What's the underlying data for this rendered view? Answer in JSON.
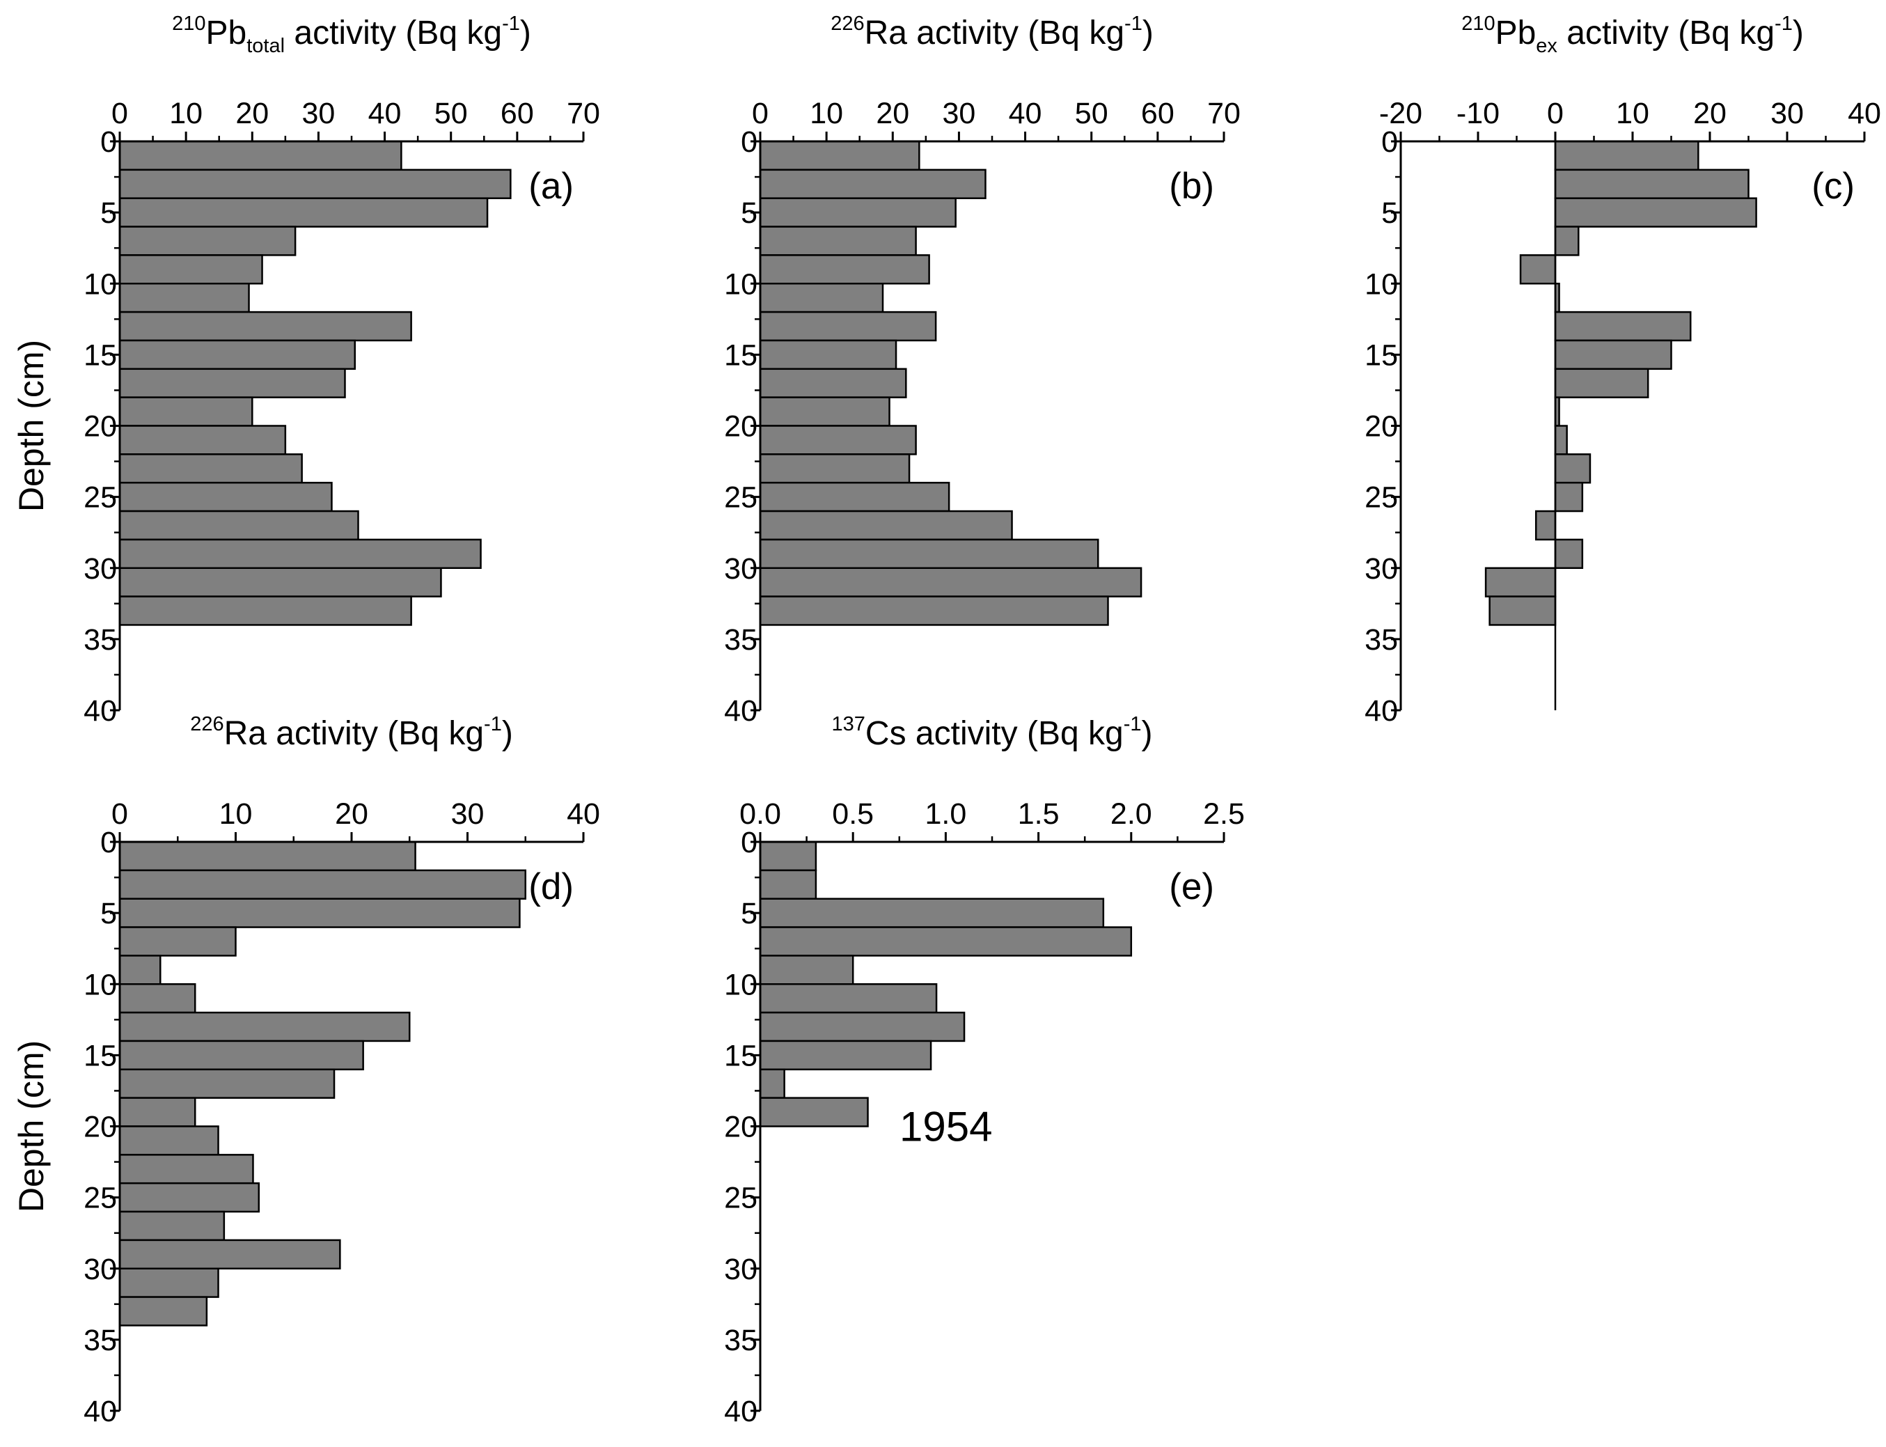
{
  "chart_data": [
    {
      "type": "bar",
      "orientation": "horizontal",
      "panel": "(a)",
      "title": {
        "sup": "210",
        "main": "Pb",
        "sub": "total",
        "rest": " activity (Bq kg",
        "unit_sup": "-1",
        "close": ")"
      },
      "ylabel": "Depth (cm)",
      "xlim": [
        0,
        70
      ],
      "xticks": [
        0,
        10,
        20,
        30,
        40,
        50,
        60,
        70
      ],
      "ylim": [
        0,
        40
      ],
      "yticks": [
        0,
        5,
        10,
        15,
        20,
        25,
        30,
        35,
        40
      ],
      "bin_width_cm": 2,
      "depth_top": [
        0,
        2,
        4,
        6,
        8,
        10,
        12,
        14,
        16,
        18,
        20,
        22,
        24,
        26,
        28,
        30,
        32
      ],
      "values": [
        42.5,
        59,
        55.5,
        26.5,
        21.5,
        19.5,
        44,
        35.5,
        34,
        20,
        25,
        27.5,
        32,
        36,
        54.5,
        48.5,
        44
      ]
    },
    {
      "type": "bar",
      "orientation": "horizontal",
      "panel": "(b)",
      "title": {
        "sup": "226",
        "main": "Ra",
        "sub": "",
        "rest": " activity (Bq kg",
        "unit_sup": "-1",
        "close": ")"
      },
      "ylabel": "",
      "xlim": [
        0,
        70
      ],
      "xticks": [
        0,
        10,
        20,
        30,
        40,
        50,
        60,
        70
      ],
      "ylim": [
        0,
        40
      ],
      "yticks": [
        0,
        5,
        10,
        15,
        20,
        25,
        30,
        35,
        40
      ],
      "bin_width_cm": 2,
      "depth_top": [
        0,
        2,
        4,
        6,
        8,
        10,
        12,
        14,
        16,
        18,
        20,
        22,
        24,
        26,
        28,
        30,
        32
      ],
      "values": [
        24,
        34,
        29.5,
        23.5,
        25.5,
        18.5,
        26.5,
        20.5,
        22,
        19.5,
        23.5,
        22.5,
        28.5,
        38,
        51,
        57.5,
        52.5
      ]
    },
    {
      "type": "bar",
      "orientation": "horizontal",
      "panel": "(c)",
      "title": {
        "sup": "210",
        "main": "Pb",
        "sub": "ex",
        "rest": " activity (Bq kg",
        "unit_sup": "-1",
        "close": ")"
      },
      "ylabel": "",
      "xlim": [
        -20,
        40
      ],
      "xticks": [
        -20,
        -10,
        0,
        10,
        20,
        30,
        40
      ],
      "ylim": [
        0,
        40
      ],
      "yticks": [
        0,
        5,
        10,
        15,
        20,
        25,
        30,
        35,
        40
      ],
      "bin_width_cm": 2,
      "depth_top": [
        0,
        2,
        4,
        6,
        8,
        10,
        12,
        14,
        16,
        18,
        20,
        22,
        24,
        26,
        28,
        30,
        32
      ],
      "values": [
        18.5,
        25,
        26,
        3,
        -4.5,
        0.5,
        17.5,
        15,
        12,
        0.5,
        1.5,
        4.5,
        3.5,
        -2.5,
        3.5,
        -9,
        -8.5
      ]
    },
    {
      "type": "bar",
      "orientation": "horizontal",
      "panel": "(d)",
      "title": {
        "sup": "226",
        "main": "Ra",
        "sub": "",
        "rest": " activity (Bq kg",
        "unit_sup": "-1",
        "close": ")"
      },
      "ylabel": "Depth (cm)",
      "xlim": [
        0,
        40
      ],
      "xticks": [
        0,
        10,
        20,
        30,
        40
      ],
      "ylim": [
        0,
        40
      ],
      "yticks": [
        0,
        5,
        10,
        15,
        20,
        25,
        30,
        35,
        40
      ],
      "bin_width_cm": 2,
      "depth_top": [
        0,
        2,
        4,
        6,
        8,
        10,
        12,
        14,
        16,
        18,
        20,
        22,
        24,
        26,
        28,
        30,
        32
      ],
      "values": [
        25.5,
        35,
        34.5,
        10,
        3.5,
        6.5,
        25,
        21,
        18.5,
        6.5,
        8.5,
        11.5,
        12,
        9,
        19,
        8.5,
        7.5
      ]
    },
    {
      "type": "bar",
      "orientation": "horizontal",
      "panel": "(e)",
      "title": {
        "sup": "137",
        "main": "Cs",
        "sub": "",
        "rest": " activity (Bq kg",
        "unit_sup": "-1",
        "close": ")"
      },
      "ylabel": "",
      "xlim": [
        0,
        2.5
      ],
      "xticks": [
        0.0,
        0.5,
        1.0,
        1.5,
        2.0,
        2.5
      ],
      "xtick_labels": [
        "0.0",
        "0.5",
        "1.0",
        "1.5",
        "2.0",
        "2.5"
      ],
      "ylim": [
        0,
        40
      ],
      "yticks": [
        0,
        5,
        10,
        15,
        20,
        25,
        30,
        35,
        40
      ],
      "bin_width_cm": 2,
      "depth_top": [
        0,
        2,
        4,
        6,
        8,
        10,
        12,
        14,
        16,
        18
      ],
      "values": [
        0.3,
        0.3,
        1.85,
        2.0,
        0.5,
        0.95,
        1.1,
        0.92,
        0.13,
        0.58
      ],
      "annotation": {
        "text": "1954",
        "depth": 20
      }
    }
  ]
}
